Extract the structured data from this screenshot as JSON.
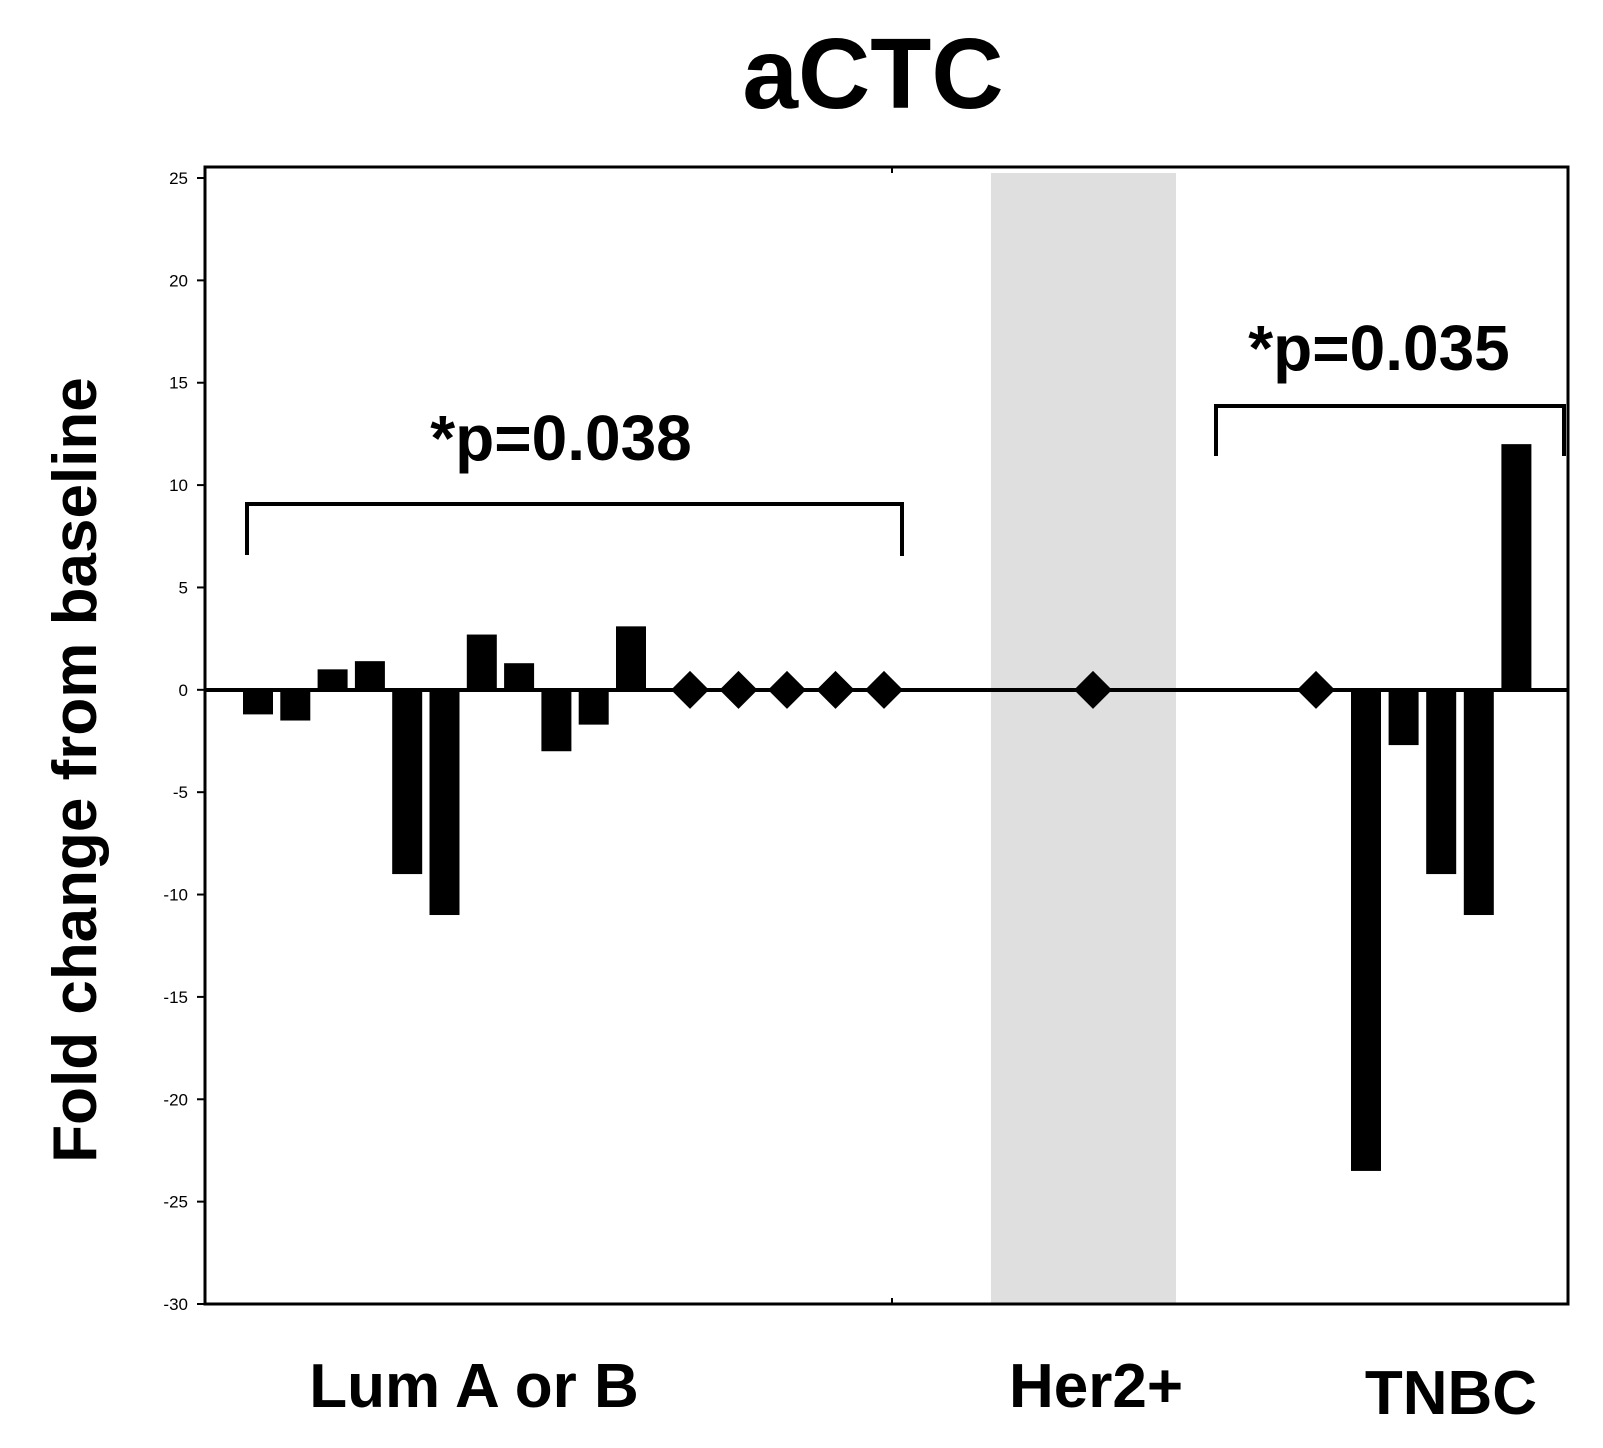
{
  "chart_data": {
    "type": "bar",
    "title": "aCTC",
    "ylabel": "Fold change from baseline",
    "xlabel": "",
    "ylim": [
      -30,
      25
    ],
    "yticks": [
      25,
      20,
      15,
      10,
      5,
      0,
      -5,
      -10,
      -15,
      -20,
      -25,
      -30
    ],
    "ytick_labels": [
      "25",
      "20",
      "15",
      "10",
      "5",
      "0",
      "-5",
      "-10",
      "-15",
      "-20",
      "-25",
      "-30"
    ],
    "grid": false,
    "groups": [
      {
        "label": "Lum A or B",
        "bars": [
          -1.2,
          -1.5,
          1.0,
          1.4,
          -9.0,
          -11.0,
          2.7,
          1.3,
          -3.0,
          -1.7,
          3.1
        ],
        "zero_markers": 5,
        "annotation": "*p=0.038"
      },
      {
        "label": "Her2+",
        "bars": [],
        "zero_markers": 1,
        "annotation": "",
        "shaded": true,
        "shade_color": "#dfdfdf"
      },
      {
        "label": "TNBC",
        "bars": [
          -23.5,
          -2.7,
          -9.0,
          -11.0,
          12.0
        ],
        "zero_markers": 1,
        "annotation": "*p=0.035"
      }
    ]
  }
}
